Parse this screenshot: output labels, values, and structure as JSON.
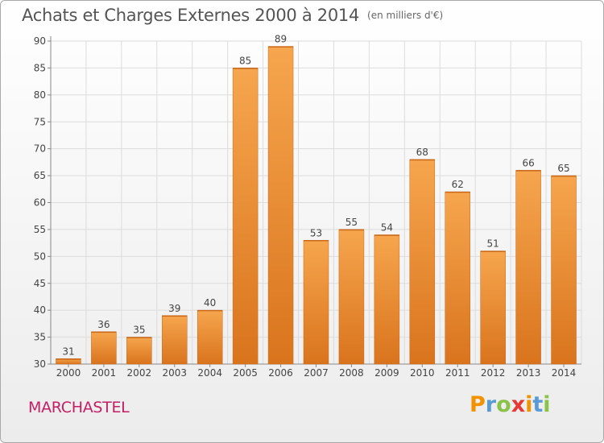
{
  "title": "Achats et Charges Externes 2000 à 2014",
  "subtitle": "(en milliers d'€)",
  "place_name": "MARCHASTEL",
  "brand": {
    "letters": [
      "P",
      "r",
      "o",
      "x",
      "i",
      "t",
      "i"
    ],
    "colors": [
      "#f39200",
      "#5b9bd5",
      "#8bc34a",
      "#e53935",
      "#f39200",
      "#5b9bd5",
      "#8bc34a"
    ]
  },
  "chart_data": {
    "type": "bar",
    "categories": [
      "2000",
      "2001",
      "2002",
      "2003",
      "2004",
      "2005",
      "2006",
      "2007",
      "2008",
      "2009",
      "2010",
      "2011",
      "2012",
      "2013",
      "2014"
    ],
    "values": [
      31,
      36,
      35,
      39,
      40,
      85,
      89,
      53,
      55,
      54,
      68,
      62,
      51,
      66,
      65
    ],
    "ylim": [
      30,
      90
    ],
    "yticks": [
      30,
      35,
      40,
      45,
      50,
      55,
      60,
      65,
      70,
      75,
      80,
      85,
      90
    ],
    "grid": true,
    "bar_color": "#f0963a",
    "title": "Achats et Charges Externes 2000 à 2014",
    "subtitle": "(en milliers d'€)"
  }
}
